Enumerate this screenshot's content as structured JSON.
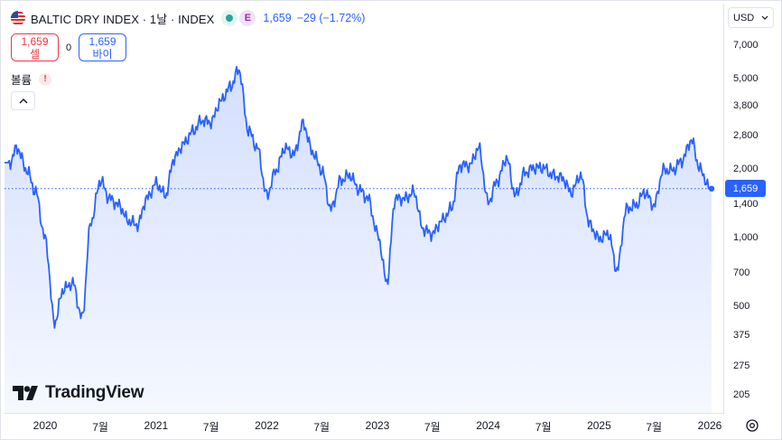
{
  "legend": {
    "symbol": "BALTIC DRY INDEX · 1날 · INDEX",
    "exchange_badge": "E",
    "price": "1,659",
    "change": "−29 (−1.72%)",
    "flag_icon": "us-flag-icon"
  },
  "trade": {
    "sell_price": "1,659",
    "sell_label": "셀",
    "spread": "0",
    "buy_price": "1,659",
    "buy_label": "바이"
  },
  "volume": {
    "label": "볼륨",
    "warning": "!"
  },
  "currency": {
    "label": "USD"
  },
  "price_tag": "1,659",
  "logo": {
    "text": "TradingView"
  },
  "colors": {
    "line": "#2962ff",
    "fill_top": "#d4dffe",
    "fill_bottom": "#f5f8ff",
    "sell": "#f23645",
    "buy": "#2962ff"
  },
  "chart_data": {
    "type": "area",
    "title": "BALTIC DRY INDEX",
    "y_scale": "log",
    "ylim": [
      175,
      8500
    ],
    "y_ticks": [
      "7,000",
      "5,000",
      "3,800",
      "2,800",
      "2,000",
      "1,400",
      "1,000",
      "700",
      "500",
      "375",
      "275",
      "205"
    ],
    "x_ticks": [
      "2020",
      "7월",
      "2021",
      "7월",
      "2022",
      "7월",
      "2023",
      "7월",
      "2024",
      "7월",
      "2025",
      "7월",
      "2026"
    ],
    "last_value": 1659,
    "series": [
      {
        "x": [
          "2019-09",
          "2019-10",
          "2019-11",
          "2019-12",
          "2020-01",
          "2020-02",
          "2020-03",
          "2020-04",
          "2020-05",
          "2020-06",
          "2020-07",
          "2020-08",
          "2020-09",
          "2020-10",
          "2020-11",
          "2020-12",
          "2021-01",
          "2021-02",
          "2021-03",
          "2021-04",
          "2021-05",
          "2021-06",
          "2021-07",
          "2021-08",
          "2021-09",
          "2021-10",
          "2021-11",
          "2021-12",
          "2022-01",
          "2022-02",
          "2022-03",
          "2022-04",
          "2022-05",
          "2022-06",
          "2022-07",
          "2022-08",
          "2022-09",
          "2022-10",
          "2022-11",
          "2022-12",
          "2023-01",
          "2023-02",
          "2023-03",
          "2023-04",
          "2023-05",
          "2023-06",
          "2023-07",
          "2023-08",
          "2023-09",
          "2023-10",
          "2023-11",
          "2023-12",
          "2024-01",
          "2024-02",
          "2024-03",
          "2024-04",
          "2024-05",
          "2024-06",
          "2024-07",
          "2024-08",
          "2024-09",
          "2024-10",
          "2024-11",
          "2024-12",
          "2025-01",
          "2025-02",
          "2025-03",
          "2025-04",
          "2025-05",
          "2025-06",
          "2025-07",
          "2025-08",
          "2025-09",
          "2025-10",
          "2025-11",
          "2025-12",
          "2026-01"
        ],
        "values": [
          2100,
          2500,
          2000,
          1600,
          1000,
          430,
          600,
          640,
          450,
          1200,
          1800,
          1500,
          1400,
          1200,
          1150,
          1500,
          1750,
          1550,
          2250,
          2600,
          2950,
          3300,
          3250,
          4000,
          4600,
          5500,
          3000,
          2500,
          1550,
          2000,
          2500,
          2350,
          3200,
          2400,
          2000,
          1350,
          1800,
          1900,
          1650,
          1500,
          1050,
          650,
          1500,
          1500,
          1600,
          1100,
          1050,
          1200,
          1350,
          2100,
          2100,
          2500,
          1450,
          1800,
          2250,
          1550,
          1950,
          2050,
          2050,
          1900,
          1850,
          1600,
          1900,
          1150,
          1000,
          1050,
          730,
          1350,
          1400,
          1600,
          1400,
          2000,
          2000,
          2200,
          2700,
          2000,
          1659
        ]
      }
    ]
  }
}
